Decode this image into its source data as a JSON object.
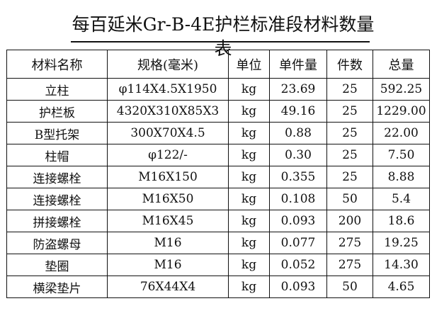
{
  "title": "每百延米Gr-B-4E护栏标准段材料数量表",
  "table": {
    "headers": [
      "材料名称",
      "规格(毫米)",
      "单位",
      "单件量",
      "件数",
      "总量"
    ],
    "rows": [
      [
        "立柱",
        "φ114X4.5X1950",
        "kg",
        "23.69",
        "25",
        "592.25"
      ],
      [
        "护栏板",
        "4320X310X85X3",
        "kg",
        "49.16",
        "25",
        "1229.00"
      ],
      [
        "B型托架",
        "300X70X4.5",
        "kg",
        "0.88",
        "25",
        "22.00"
      ],
      [
        "柱帽",
        "φ122/-",
        "kg",
        "0.30",
        "25",
        "7.50"
      ],
      [
        "连接螺栓",
        "M16X150",
        "kg",
        "0.355",
        "25",
        "8.88"
      ],
      [
        "连接螺栓",
        "M16X50",
        "kg",
        "0.108",
        "50",
        "5.4"
      ],
      [
        "拼接螺栓",
        "M16X45",
        "kg",
        "0.093",
        "200",
        "18.6"
      ],
      [
        "防盗螺母",
        "M16",
        "kg",
        "0.077",
        "275",
        "19.25"
      ],
      [
        "垫圈",
        "M16",
        "kg",
        "0.052",
        "275",
        "14.30"
      ],
      [
        "横梁垫片",
        "76X44X4",
        "kg",
        "0.093",
        "50",
        "4.65"
      ]
    ]
  }
}
